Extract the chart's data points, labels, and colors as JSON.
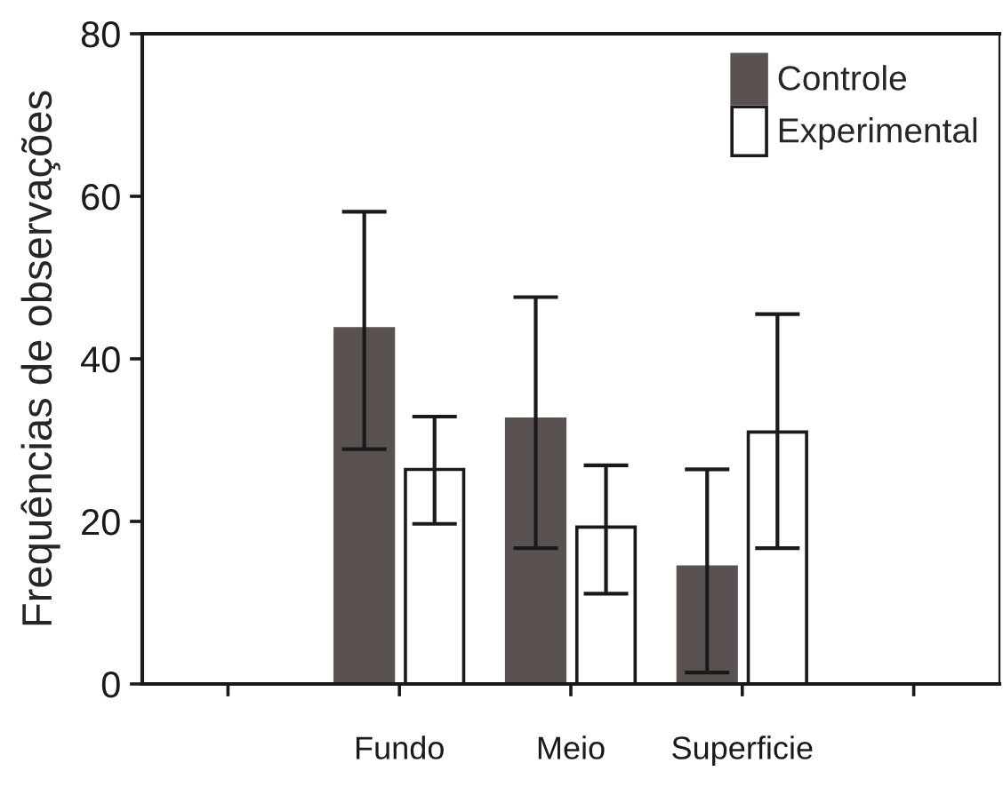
{
  "chart_data": {
    "type": "bar",
    "ylabel": "Frequências de observações",
    "categories": [
      null,
      "Fundo",
      "Meio",
      "Superficie",
      null
    ],
    "series": [
      {
        "name": "Controle",
        "color": "#5a5250",
        "values": [
          null,
          43.7,
          32.6,
          14.4,
          null
        ],
        "errors": [
          null,
          [
            28.9,
            58.1
          ],
          [
            16.7,
            47.6
          ],
          [
            1.4,
            26.4
          ],
          null
        ]
      },
      {
        "name": "Experimental",
        "color": "#ffffff",
        "values": [
          null,
          26.4,
          19.3,
          31,
          null
        ],
        "errors": [
          null,
          [
            19.7,
            32.9
          ],
          [
            11.1,
            26.9
          ],
          [
            16.7,
            45.5
          ],
          null
        ]
      }
    ],
    "ylim": [
      0,
      80
    ],
    "yticks": [
      0,
      20,
      40,
      60,
      80
    ],
    "grid": false,
    "legend": "top right"
  }
}
